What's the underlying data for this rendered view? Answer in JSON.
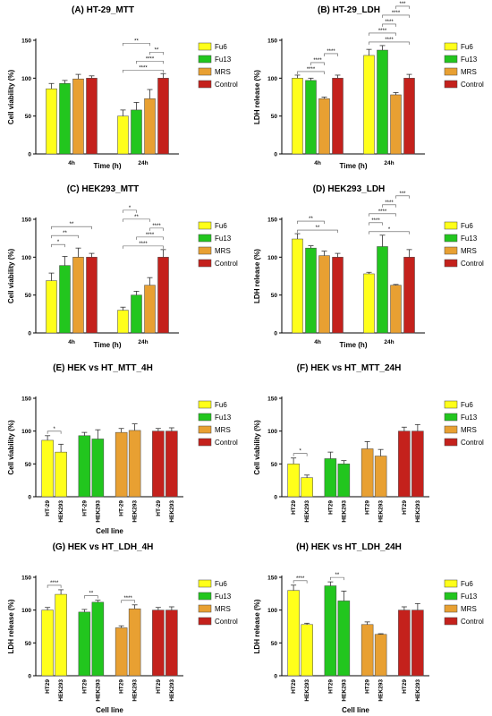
{
  "colors": {
    "fu6": "#ffff1a",
    "fu13": "#22c61e",
    "mrs": "#e8a032",
    "control": "#c4211c"
  },
  "chart_data": [
    {
      "id": "A",
      "type": "bar",
      "title": "(A) HT-29_MTT",
      "xlabel": "Time (h)",
      "ylabel": "Cell viability (%)",
      "ylim": [
        0,
        150
      ],
      "yticks": [
        "0",
        "50",
        "100",
        "150"
      ],
      "groups": [
        "4h",
        "24h"
      ],
      "series": [
        {
          "name": "Fu6",
          "values": [
            86,
            50
          ],
          "errors": [
            7,
            8
          ]
        },
        {
          "name": "Fu13",
          "values": [
            93,
            58
          ],
          "errors": [
            4,
            10
          ]
        },
        {
          "name": "MRS",
          "values": [
            99,
            73
          ],
          "errors": [
            6,
            12
          ]
        },
        {
          "name": "Control",
          "values": [
            100,
            100
          ],
          "errors": [
            3,
            6
          ]
        }
      ],
      "sig": [
        {
          "g": 1,
          "a": 0,
          "b": 3,
          "label": "****"
        },
        {
          "g": 1,
          "a": 1,
          "b": 3,
          "label": "****"
        },
        {
          "g": 1,
          "a": 2,
          "b": 3,
          "label": "**"
        },
        {
          "g": 1,
          "a": 0,
          "b": 2,
          "label": "**"
        }
      ]
    },
    {
      "id": "B",
      "type": "bar",
      "title": "(B) HT-29_LDH",
      "xlabel": "Time (h)",
      "ylabel": "LDH release (%)",
      "ylim": [
        0,
        150
      ],
      "yticks": [
        "0",
        "50",
        "100",
        "150"
      ],
      "groups": [
        "4h",
        "24h"
      ],
      "series": [
        {
          "name": "Fu6",
          "values": [
            100,
            130
          ],
          "errors": [
            4,
            8
          ]
        },
        {
          "name": "Fu13",
          "values": [
            97,
            137
          ],
          "errors": [
            3,
            6
          ]
        },
        {
          "name": "MRS",
          "values": [
            73,
            78
          ],
          "errors": [
            2,
            3
          ]
        },
        {
          "name": "Control",
          "values": [
            100,
            100
          ],
          "errors": [
            4,
            5
          ]
        }
      ],
      "sig": [
        {
          "g": 0,
          "a": 0,
          "b": 2,
          "label": "****"
        },
        {
          "g": 0,
          "a": 1,
          "b": 2,
          "label": "****"
        },
        {
          "g": 0,
          "a": 2,
          "b": 3,
          "label": "****"
        },
        {
          "g": 1,
          "a": 0,
          "b": 3,
          "label": "****"
        },
        {
          "g": 1,
          "a": 0,
          "b": 2,
          "label": "****"
        },
        {
          "g": 1,
          "a": 1,
          "b": 2,
          "label": "****"
        },
        {
          "g": 1,
          "a": 1,
          "b": 3,
          "label": "****"
        },
        {
          "g": 1,
          "a": 2,
          "b": 3,
          "label": "***"
        }
      ]
    },
    {
      "id": "C",
      "type": "bar",
      "title": "(C) HEK293_MTT",
      "xlabel": "Time (h)",
      "ylabel": "Cell viability (%)",
      "ylim": [
        0,
        150
      ],
      "yticks": [
        "0",
        "50",
        "100",
        "150"
      ],
      "groups": [
        "4h",
        "24h"
      ],
      "series": [
        {
          "name": "Fu6",
          "values": [
            69,
            30
          ],
          "errors": [
            10,
            4
          ]
        },
        {
          "name": "Fu13",
          "values": [
            89,
            50
          ],
          "errors": [
            12,
            5
          ]
        },
        {
          "name": "MRS",
          "values": [
            100,
            63
          ],
          "errors": [
            12,
            10
          ]
        },
        {
          "name": "Control",
          "values": [
            100,
            100
          ],
          "errors": [
            5,
            10
          ]
        }
      ],
      "sig": [
        {
          "g": 0,
          "a": 0,
          "b": 1,
          "label": "*"
        },
        {
          "g": 0,
          "a": 0,
          "b": 2,
          "label": "**"
        },
        {
          "g": 0,
          "a": 0,
          "b": 3,
          "label": "**"
        },
        {
          "g": 1,
          "a": 0,
          "b": 3,
          "label": "****"
        },
        {
          "g": 1,
          "a": 1,
          "b": 3,
          "label": "****"
        },
        {
          "g": 1,
          "a": 2,
          "b": 3,
          "label": "****"
        },
        {
          "g": 1,
          "a": 0,
          "b": 2,
          "label": "**"
        },
        {
          "g": 1,
          "a": 0,
          "b": 1,
          "label": "*"
        }
      ]
    },
    {
      "id": "D",
      "type": "bar",
      "title": "(D) HEK293_LDH",
      "xlabel": "Time (h)",
      "ylabel": "LDH release (%)",
      "ylim": [
        0,
        150
      ],
      "yticks": [
        "0",
        "50",
        "100",
        "150"
      ],
      "groups": [
        "4h",
        "24h"
      ],
      "series": [
        {
          "name": "Fu6",
          "values": [
            124,
            78
          ],
          "errors": [
            7,
            2
          ]
        },
        {
          "name": "Fu13",
          "values": [
            112,
            114
          ],
          "errors": [
            3,
            15
          ]
        },
        {
          "name": "MRS",
          "values": [
            102,
            63
          ],
          "errors": [
            6,
            1
          ]
        },
        {
          "name": "Control",
          "values": [
            100,
            100
          ],
          "errors": [
            5,
            10
          ]
        }
      ],
      "sig": [
        {
          "g": 0,
          "a": 0,
          "b": 3,
          "label": "**"
        },
        {
          "g": 0,
          "a": 0,
          "b": 2,
          "label": "**"
        },
        {
          "g": 1,
          "a": 0,
          "b": 3,
          "label": "*"
        },
        {
          "g": 1,
          "a": 0,
          "b": 1,
          "label": "****"
        },
        {
          "g": 1,
          "a": 0,
          "b": 2,
          "label": "****"
        },
        {
          "g": 1,
          "a": 1,
          "b": 2,
          "label": "****"
        },
        {
          "g": 1,
          "a": 2,
          "b": 3,
          "label": "***"
        }
      ]
    },
    {
      "id": "E",
      "type": "bar",
      "title": "(E) HEK vs HT_MTT_4H",
      "xlabel": "Cell line",
      "ylabel": "Cell viability (%)",
      "ylim": [
        0,
        150
      ],
      "yticks": [
        "0",
        "50",
        "100",
        "150"
      ],
      "pairs": [
        {
          "name": "Fu6",
          "labels": [
            "HT-29",
            "HEK293"
          ],
          "values": [
            86,
            68
          ],
          "errors": [
            7,
            12
          ]
        },
        {
          "name": "Fu13",
          "labels": [
            "HT-29",
            "HEK293"
          ],
          "values": [
            93,
            88
          ],
          "errors": [
            5,
            14
          ]
        },
        {
          "name": "MRS",
          "labels": [
            "HT-29",
            "HEK293"
          ],
          "values": [
            98,
            101
          ],
          "errors": [
            6,
            10
          ]
        },
        {
          "name": "Control",
          "labels": [
            "HT-29",
            "HEK293"
          ],
          "values": [
            100,
            100
          ],
          "errors": [
            4,
            5
          ]
        }
      ],
      "sig": [
        {
          "p": 0,
          "label": "*"
        }
      ]
    },
    {
      "id": "F",
      "type": "bar",
      "title": "(F) HEK vs HT_MTT_24H",
      "xlabel": "",
      "ylabel": "Cell viability (%)",
      "ylim": [
        0,
        150
      ],
      "yticks": [
        "0",
        "50",
        "100",
        "150"
      ],
      "pairs": [
        {
          "name": "Fu6",
          "labels": [
            "HT29",
            "HEK293"
          ],
          "values": [
            50,
            29
          ],
          "errors": [
            9,
            4
          ]
        },
        {
          "name": "Fu13",
          "labels": [
            "HT29",
            "HEK293"
          ],
          "values": [
            58,
            50
          ],
          "errors": [
            10,
            5
          ]
        },
        {
          "name": "MRS",
          "labels": [
            "HT29",
            "HEK293"
          ],
          "values": [
            73,
            62
          ],
          "errors": [
            11,
            10
          ]
        },
        {
          "name": "Control",
          "labels": [
            "HT29",
            "HEK293"
          ],
          "values": [
            100,
            100
          ],
          "errors": [
            6,
            10
          ]
        }
      ],
      "sig": [
        {
          "p": 0,
          "label": "*"
        }
      ]
    },
    {
      "id": "G",
      "type": "bar",
      "title": "(G) HEK vs HT_LDH_4H",
      "xlabel": "Cell line",
      "ylabel": "LDH release (%)",
      "ylim": [
        0,
        150
      ],
      "yticks": [
        "0",
        "50",
        "100",
        "150"
      ],
      "pairs": [
        {
          "name": "Fu6",
          "labels": [
            "HT29",
            "HEK293"
          ],
          "values": [
            100,
            124
          ],
          "errors": [
            4,
            7
          ]
        },
        {
          "name": "Fu13",
          "labels": [
            "HT29",
            "HEK293"
          ],
          "values": [
            97,
            112
          ],
          "errors": [
            4,
            3
          ]
        },
        {
          "name": "MRS",
          "labels": [
            "HT29",
            "HEK293"
          ],
          "values": [
            73,
            102
          ],
          "errors": [
            3,
            6
          ]
        },
        {
          "name": "Control",
          "labels": [
            "HT29",
            "HEK293"
          ],
          "values": [
            100,
            100
          ],
          "errors": [
            4,
            5
          ]
        }
      ],
      "sig": [
        {
          "p": 0,
          "label": "****"
        },
        {
          "p": 1,
          "label": "**"
        },
        {
          "p": 2,
          "label": "****"
        }
      ]
    },
    {
      "id": "H",
      "type": "bar",
      "title": "(H) HEK vs HT_LDH_24H",
      "xlabel": "Cell line",
      "ylabel": "LDH release (%)",
      "ylim": [
        0,
        150
      ],
      "yticks": [
        "0",
        "50",
        "100",
        "150"
      ],
      "pairs": [
        {
          "name": "Fu6",
          "labels": [
            "HT29",
            "HEK293"
          ],
          "values": [
            130,
            78
          ],
          "errors": [
            8,
            2
          ]
        },
        {
          "name": "Fu13",
          "labels": [
            "HT29",
            "HEK293"
          ],
          "values": [
            137,
            114
          ],
          "errors": [
            6,
            15
          ]
        },
        {
          "name": "MRS",
          "labels": [
            "HT29",
            "HEK293"
          ],
          "values": [
            78,
            63
          ],
          "errors": [
            4,
            1
          ]
        },
        {
          "name": "Control",
          "labels": [
            "HT29",
            "HEK293"
          ],
          "values": [
            100,
            100
          ],
          "errors": [
            5,
            10
          ]
        }
      ],
      "sig": [
        {
          "p": 0,
          "label": "****"
        },
        {
          "p": 1,
          "label": "**"
        }
      ]
    }
  ]
}
